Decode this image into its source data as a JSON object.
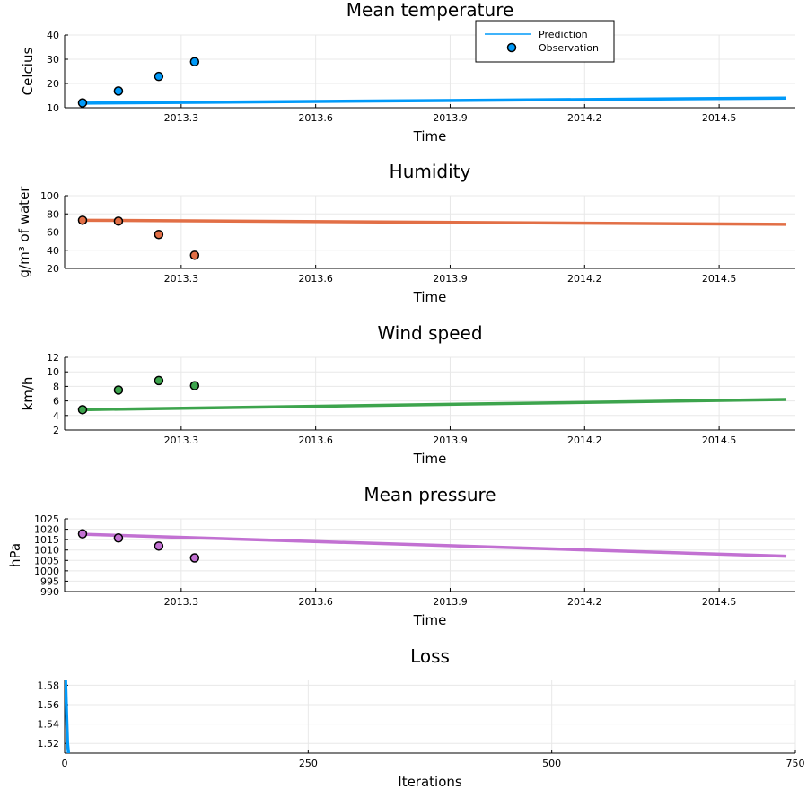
{
  "chart_data": [
    {
      "type": "line",
      "title": "Mean temperature",
      "xlabel": "Time",
      "ylabel": "Celcius",
      "xlim": [
        2013.04,
        2014.67
      ],
      "ylim": [
        10,
        40
      ],
      "xticks": [
        2013.3,
        2013.6,
        2013.9,
        2014.2,
        2014.5
      ],
      "xtick_labels": [
        "2013.3",
        "2013.6",
        "2013.9",
        "2014.2",
        "2014.5"
      ],
      "yticks": [
        10,
        20,
        30,
        40
      ],
      "ytick_labels": [
        "10",
        "20",
        "30",
        "40"
      ],
      "color": "#009af9",
      "series": [
        {
          "name": "Prediction",
          "kind": "line",
          "x": [
            2013.08,
            2014.65
          ],
          "y": [
            11.9,
            14.0
          ]
        },
        {
          "name": "Observation",
          "kind": "scatter",
          "x": [
            2013.08,
            2013.16,
            2013.25,
            2013.33
          ],
          "y": [
            12.0,
            16.9,
            22.9,
            29.0
          ]
        }
      ],
      "legend": {
        "position": "top-right",
        "entries": [
          "Prediction",
          "Observation"
        ]
      }
    },
    {
      "type": "line",
      "title": "Humidity",
      "xlabel": "Time",
      "ylabel": "g/m³ of water",
      "xlim": [
        2013.04,
        2014.67
      ],
      "ylim": [
        20,
        100
      ],
      "xticks": [
        2013.3,
        2013.6,
        2013.9,
        2014.2,
        2014.5
      ],
      "xtick_labels": [
        "2013.3",
        "2013.6",
        "2013.9",
        "2014.2",
        "2014.5"
      ],
      "yticks": [
        20,
        40,
        60,
        80,
        100
      ],
      "ytick_labels": [
        "20",
        "40",
        "60",
        "80",
        "100"
      ],
      "color": "#e26f46",
      "series": [
        {
          "name": "Prediction",
          "kind": "line",
          "x": [
            2013.08,
            2014.65
          ],
          "y": [
            73.0,
            68.5
          ]
        },
        {
          "name": "Observation",
          "kind": "scatter",
          "x": [
            2013.08,
            2013.16,
            2013.25,
            2013.33
          ],
          "y": [
            73.0,
            72.0,
            57.3,
            34.5
          ]
        }
      ]
    },
    {
      "type": "line",
      "title": "Wind speed",
      "xlabel": "Time",
      "ylabel": "km/h",
      "xlim": [
        2013.04,
        2014.67
      ],
      "ylim": [
        2,
        12
      ],
      "xticks": [
        2013.3,
        2013.6,
        2013.9,
        2014.2,
        2014.5
      ],
      "xtick_labels": [
        "2013.3",
        "2013.6",
        "2013.9",
        "2014.2",
        "2014.5"
      ],
      "yticks": [
        2,
        4,
        6,
        8,
        10,
        12
      ],
      "ytick_labels": [
        "2",
        "4",
        "6",
        "8",
        "10",
        "12"
      ],
      "color": "#3da44d",
      "series": [
        {
          "name": "Prediction",
          "kind": "line",
          "x": [
            2013.08,
            2014.65
          ],
          "y": [
            4.8,
            6.2
          ]
        },
        {
          "name": "Observation",
          "kind": "scatter",
          "x": [
            2013.08,
            2013.16,
            2013.25,
            2013.33
          ],
          "y": [
            4.8,
            7.5,
            8.8,
            8.1
          ]
        }
      ]
    },
    {
      "type": "line",
      "title": "Mean pressure",
      "xlabel": "Time",
      "ylabel": "hPa",
      "xlim": [
        2013.04,
        2014.67
      ],
      "ylim": [
        990,
        1025
      ],
      "xticks": [
        2013.3,
        2013.6,
        2013.9,
        2014.2,
        2014.5
      ],
      "xtick_labels": [
        "2013.3",
        "2013.6",
        "2013.9",
        "2014.2",
        "2014.5"
      ],
      "yticks": [
        990,
        995,
        1000,
        1005,
        1010,
        1015,
        1020,
        1025
      ],
      "ytick_labels": [
        "990",
        "995",
        "1000",
        "1005",
        "1010",
        "1015",
        "1020",
        "1025"
      ],
      "color": "#c271d2",
      "series": [
        {
          "name": "Prediction",
          "kind": "line",
          "x": [
            2013.08,
            2014.65
          ],
          "y": [
            1017.6,
            1007.0
          ]
        },
        {
          "name": "Observation",
          "kind": "scatter",
          "x": [
            2013.08,
            2013.16,
            2013.25,
            2013.33
          ],
          "y": [
            1017.8,
            1015.8,
            1011.9,
            1006.2
          ]
        }
      ]
    },
    {
      "type": "line",
      "title": "Loss",
      "xlabel": "Iterations",
      "ylabel": "",
      "xlim": [
        0,
        750
      ],
      "ylim": [
        1.51,
        1.585
      ],
      "xticks": [
        0,
        250,
        500,
        750
      ],
      "xtick_labels": [
        "0",
        "250",
        "500",
        "750"
      ],
      "yticks": [
        1.52,
        1.54,
        1.56,
        1.58
      ],
      "ytick_labels": [
        "1.52",
        "1.54",
        "1.56",
        "1.58"
      ],
      "color": "#009af9",
      "series": [
        {
          "name": "Loss",
          "kind": "line",
          "x": [
            1,
            2,
            3,
            4
          ],
          "y": [
            1.585,
            1.55,
            1.52,
            1.51
          ]
        }
      ]
    }
  ]
}
